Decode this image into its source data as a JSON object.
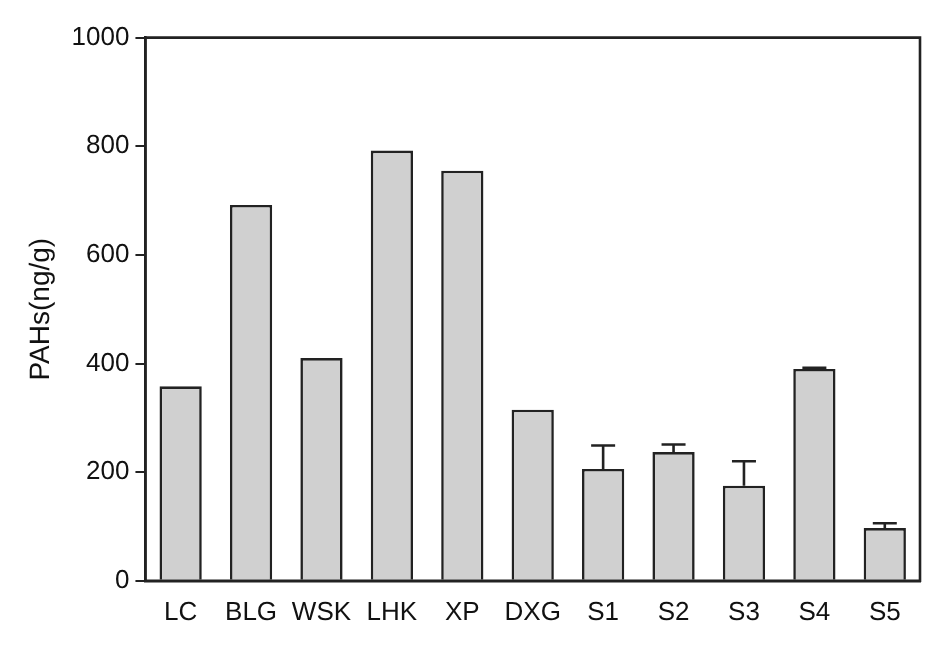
{
  "chart_data": {
    "type": "bar",
    "ylabel": "PAHs(ng/g)",
    "categories": [
      "LC",
      "BLG",
      "WSK",
      "LHK",
      "XP",
      "DXG",
      "S1",
      "S2",
      "S3",
      "S4",
      "S5"
    ],
    "values": [
      358,
      692,
      410,
      792,
      755,
      315,
      206,
      237,
      175,
      390,
      97
    ],
    "errors": [
      null,
      null,
      null,
      null,
      null,
      null,
      [
        206,
        249
      ],
      [
        237,
        251
      ],
      [
        175,
        220
      ],
      [
        390,
        392
      ],
      [
        97,
        106
      ]
    ],
    "color": "#d0d0d0",
    "ylim": [
      0,
      1000
    ],
    "yticks": [
      0,
      200,
      400,
      600,
      800,
      1000
    ],
    "grid": false,
    "legend": false
  }
}
